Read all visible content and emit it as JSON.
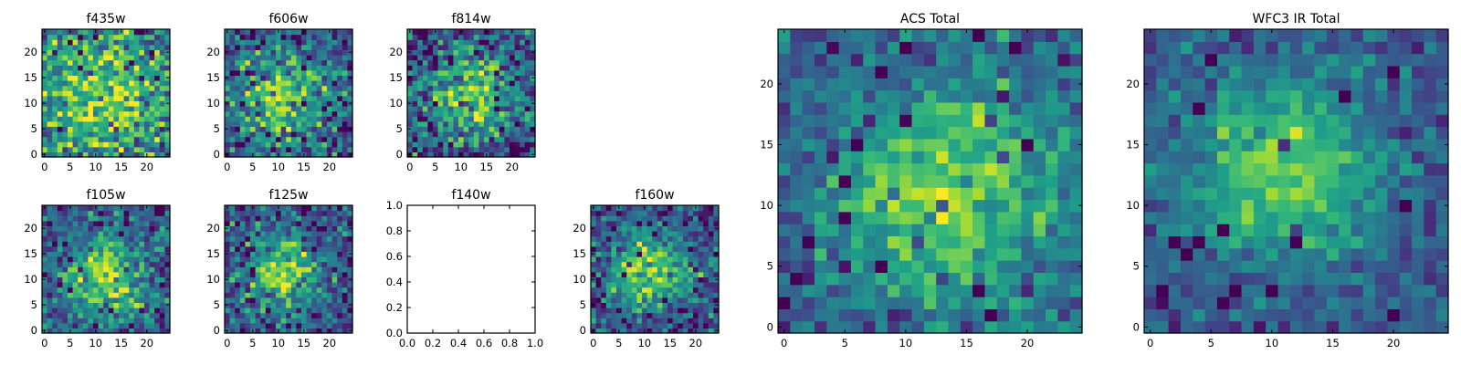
{
  "chart_data": [
    {
      "type": "heatmap",
      "title": "f435w",
      "colormap": "viridis",
      "xlim": [
        -0.5,
        24.5
      ],
      "ylim": [
        -0.5,
        24.5
      ],
      "xticks": [
        0,
        5,
        10,
        15,
        20
      ],
      "yticks": [
        0,
        5,
        10,
        15,
        20
      ],
      "grid": false,
      "peak": [
        12,
        11
      ],
      "sigma": 12,
      "noise": 0.36,
      "seed": 11
    },
    {
      "type": "heatmap",
      "title": "f606w",
      "colormap": "viridis",
      "xlim": [
        -0.5,
        24.5
      ],
      "ylim": [
        -0.5,
        24.5
      ],
      "xticks": [
        0,
        5,
        10,
        15,
        20
      ],
      "yticks": [
        0,
        5,
        10,
        15,
        20
      ],
      "grid": false,
      "peak": [
        11,
        11
      ],
      "sigma": 6,
      "noise": 0.32,
      "seed": 23
    },
    {
      "type": "heatmap",
      "title": "f814w",
      "colormap": "viridis",
      "xlim": [
        -0.5,
        24.5
      ],
      "ylim": [
        -0.5,
        24.5
      ],
      "xticks": [
        0,
        5,
        10,
        15,
        20
      ],
      "yticks": [
        0,
        5,
        10,
        15,
        20
      ],
      "grid": false,
      "peak": [
        12,
        12
      ],
      "sigma": 6,
      "noise": 0.34,
      "seed": 37
    },
    {
      "type": "heatmap",
      "title": "f105w",
      "colormap": "viridis",
      "xlim": [
        -0.5,
        24.5
      ],
      "ylim": [
        -0.5,
        24.5
      ],
      "xticks": [
        0,
        5,
        10,
        15,
        20
      ],
      "yticks": [
        0,
        5,
        10,
        15,
        20
      ],
      "grid": false,
      "peak": [
        12,
        10
      ],
      "sigma": 6,
      "noise": 0.28,
      "seed": 41
    },
    {
      "type": "heatmap",
      "title": "f125w",
      "colormap": "viridis",
      "xlim": [
        -0.5,
        24.5
      ],
      "ylim": [
        -0.5,
        24.5
      ],
      "xticks": [
        0,
        5,
        10,
        15,
        20
      ],
      "yticks": [
        0,
        5,
        10,
        15,
        20
      ],
      "grid": false,
      "peak": [
        11,
        11
      ],
      "sigma": 5,
      "noise": 0.3,
      "seed": 53
    },
    {
      "type": "empty",
      "title": "f140w",
      "xlim": [
        0.0,
        1.0
      ],
      "ylim": [
        0.0,
        1.0
      ],
      "xticklabels": [
        "0.0",
        "0.2",
        "0.4",
        "0.6",
        "0.8",
        "1.0"
      ],
      "yticklabels": [
        "0.0",
        "0.2",
        "0.4",
        "0.6",
        "0.8",
        "1.0"
      ]
    },
    {
      "type": "heatmap",
      "title": "f160w",
      "colormap": "viridis",
      "xlim": [
        -0.5,
        24.5
      ],
      "ylim": [
        -0.5,
        24.5
      ],
      "xticks": [
        0,
        5,
        10,
        15,
        20
      ],
      "yticks": [
        0,
        5,
        10,
        15,
        20
      ],
      "grid": false,
      "peak": [
        11,
        12
      ],
      "sigma": 5,
      "noise": 0.26,
      "seed": 67
    },
    {
      "type": "heatmap",
      "title": "ACS Total",
      "colormap": "viridis",
      "xlim": [
        -0.5,
        24.5
      ],
      "ylim": [
        -0.5,
        24.5
      ],
      "xticks": [
        0,
        5,
        10,
        15,
        20
      ],
      "yticks": [
        0,
        5,
        10,
        15,
        20
      ],
      "grid": false,
      "peak": [
        13,
        11
      ],
      "sigma": 7,
      "noise": 0.22,
      "seed": 79
    },
    {
      "type": "heatmap",
      "title": "WFC3 IR Total",
      "colormap": "viridis",
      "xlim": [
        -0.5,
        24.5
      ],
      "ylim": [
        -0.5,
        24.5
      ],
      "xticks": [
        0,
        5,
        10,
        15,
        20
      ],
      "yticks": [
        0,
        5,
        10,
        15,
        20
      ],
      "grid": false,
      "peak": [
        11,
        13
      ],
      "sigma": 5.5,
      "noise": 0.16,
      "seed": 97
    }
  ]
}
